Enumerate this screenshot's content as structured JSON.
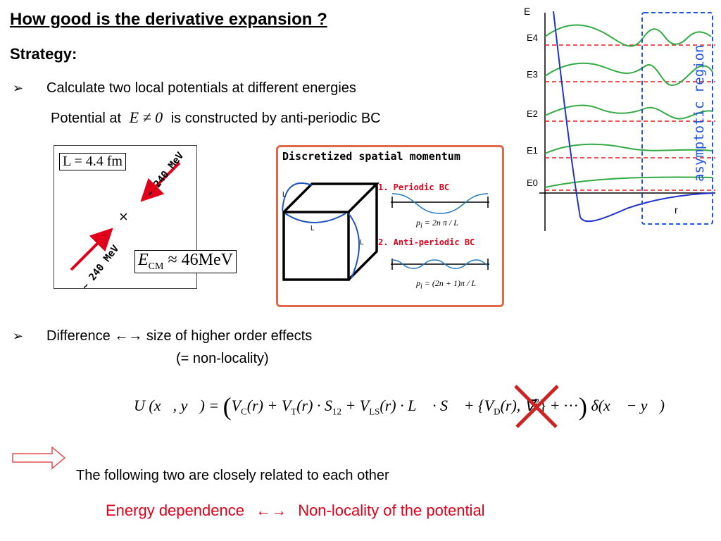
{
  "title": "How good is the derivative expansion ?",
  "strategy": "Strategy:",
  "bullets": [
    {
      "marker": "➢",
      "text": "Calculate two local potentials at different energies"
    },
    {
      "marker": "➢",
      "text": "Difference ←→ size of higher order effects"
    }
  ],
  "potential_line": {
    "prefix": "Potential at",
    "math": "E ≠ 0",
    "suffix": "is constructed  by anti-periodic BC"
  },
  "nonlocality_note": "(=  non-locality)",
  "collision_panel": {
    "box_label": "L = 4.4 fm",
    "energy_label_left": "~ 240 MeV",
    "energy_label_right": "~ 240 MeV",
    "center_mark": "×",
    "ecm_label": "E",
    "ecm_sub": "CM",
    "ecm_value": "≈ 46MeV",
    "arrow_color": "#e0001a"
  },
  "discretized_panel": {
    "title": "Discretized spatial momentum",
    "cube_label": "L",
    "periodic_label": "1. Periodic BC",
    "periodic_formula": "p",
    "periodic_formula_text": "= 2n π / L",
    "antiperiodic_label": "2. Anti-periodic BC",
    "antiperiodic_formula_text": "= (2n + 1)π / L",
    "formula_sub": "i",
    "border_color": "#e0694a",
    "wave_color": "#2277bb"
  },
  "energy_diagram": {
    "axis_y_label": "E",
    "axis_x_label": "r",
    "levels": [
      "E4",
      "E3",
      "E2",
      "E1",
      "E0"
    ],
    "region_label": "asymptotic region",
    "region_color": "#2255dd",
    "potential_color": "#2233cc",
    "wave_color": "#33aa44",
    "level_color": "#e02020"
  },
  "equation": "U (x⃗, y⃗) = ( V",
  "equation_parts": {
    "lhs": "U (x⃗, y⃗) =",
    "vc": "V",
    "vc_sub": "C",
    "r1": "(r) + V",
    "vt_sub": "T",
    "r2": "(r) · S",
    "s12_sub": "12",
    "r3": "+ V",
    "vls_sub": "LS",
    "r4": "(r) · L⃗ · S⃗ + {V",
    "vd_sub": "D",
    "r5": "(r), ∇⃗",
    "sup2": "2",
    "r6": "} + ···",
    "tail": "δ(x⃗ − y⃗)"
  },
  "related_text": "The following two are closely related to each other",
  "conclusion": {
    "left": "Energy dependence",
    "arrow": "←→",
    "right": "Non-locality of the potential"
  },
  "colors": {
    "accent_red": "#e0001a",
    "cross_red": "#cc2222",
    "outline_arrow": "#e05050"
  }
}
